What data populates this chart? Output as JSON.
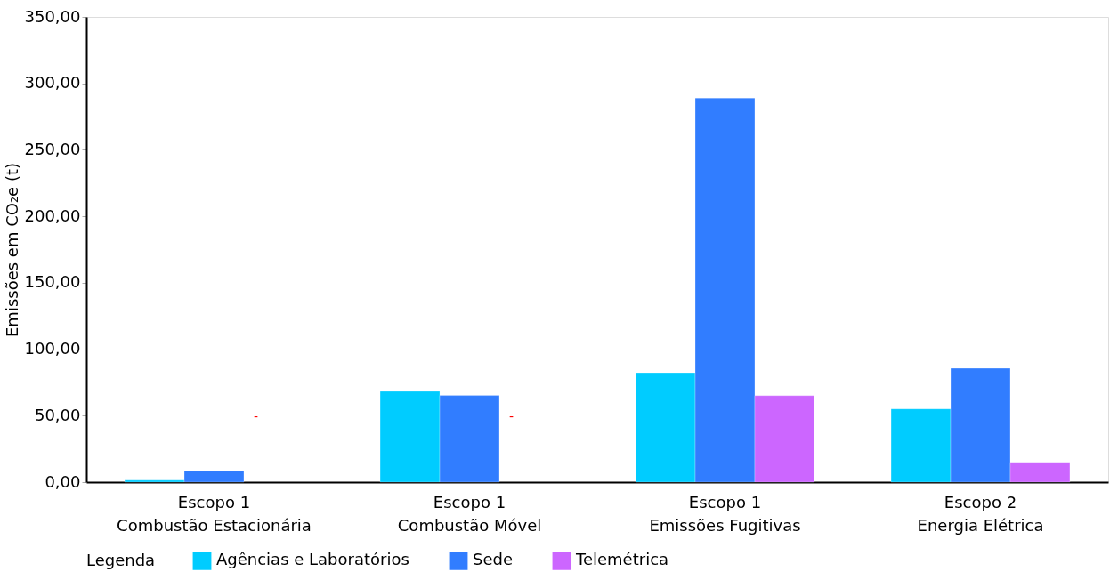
{
  "chart_data": {
    "type": "bar",
    "ylabel": "Emissões em CO₂e (t)",
    "legend_title": "Legenda",
    "categories": [
      "Escopo 1\nCombustão Estacionária",
      "Escopo 1\nCombustão Móvel",
      "Escopo 1\nEmissões Fugitivas",
      "Escopo 2\nEnergia Elétrica"
    ],
    "series": [
      {
        "name": "Agências e Laboratórios",
        "color": "#00ccff",
        "values": [
          1.5,
          68.3,
          82.3,
          55.1
        ]
      },
      {
        "name": "Sede",
        "color": "#317dff",
        "values": [
          8.4,
          65.2,
          289.0,
          85.6
        ]
      },
      {
        "name": "Telemétrica",
        "color": "#cc66ff",
        "values": [
          null,
          null,
          65.1,
          14.9
        ]
      }
    ],
    "annotations": [
      "-",
      "-"
    ],
    "ylim": [
      0,
      350
    ],
    "yticks": [
      {
        "value": 0,
        "label": "0,00"
      },
      {
        "value": 50,
        "label": "50,00"
      },
      {
        "value": 100,
        "label": "100,00"
      },
      {
        "value": 150,
        "label": "150,00"
      },
      {
        "value": 200,
        "label": "200,00"
      },
      {
        "value": 250,
        "label": "250,00"
      },
      {
        "value": 300,
        "label": "300,00"
      },
      {
        "value": 350,
        "label": "350,00"
      }
    ],
    "grid": false,
    "legend": "bottom"
  }
}
